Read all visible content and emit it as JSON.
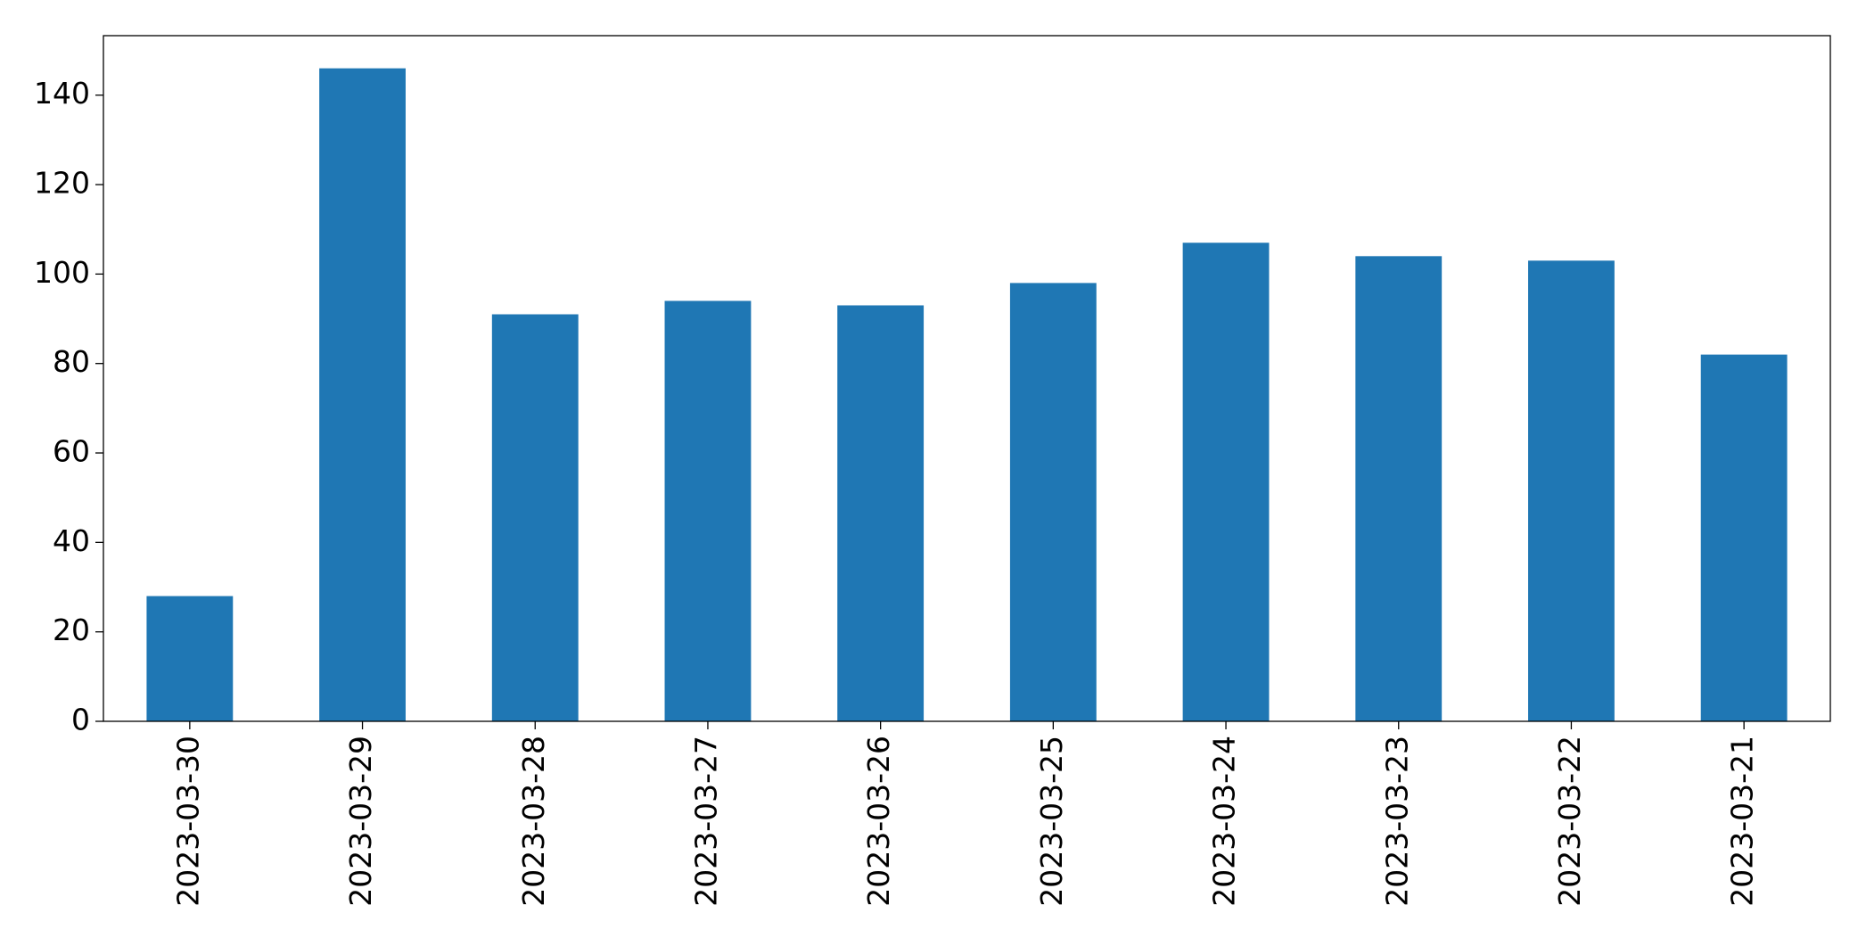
{
  "chart_data": {
    "type": "bar",
    "categories": [
      "2023-03-30",
      "2023-03-29",
      "2023-03-28",
      "2023-03-27",
      "2023-03-26",
      "2023-03-25",
      "2023-03-24",
      "2023-03-23",
      "2023-03-22",
      "2023-03-21"
    ],
    "values": [
      28,
      146,
      91,
      94,
      93,
      98,
      107,
      104,
      103,
      82
    ],
    "color": "#1f77b4",
    "ylim": [
      0,
      153.3
    ],
    "yticks": [
      0,
      20,
      40,
      60,
      80,
      100,
      120,
      140
    ],
    "grid": false
  }
}
